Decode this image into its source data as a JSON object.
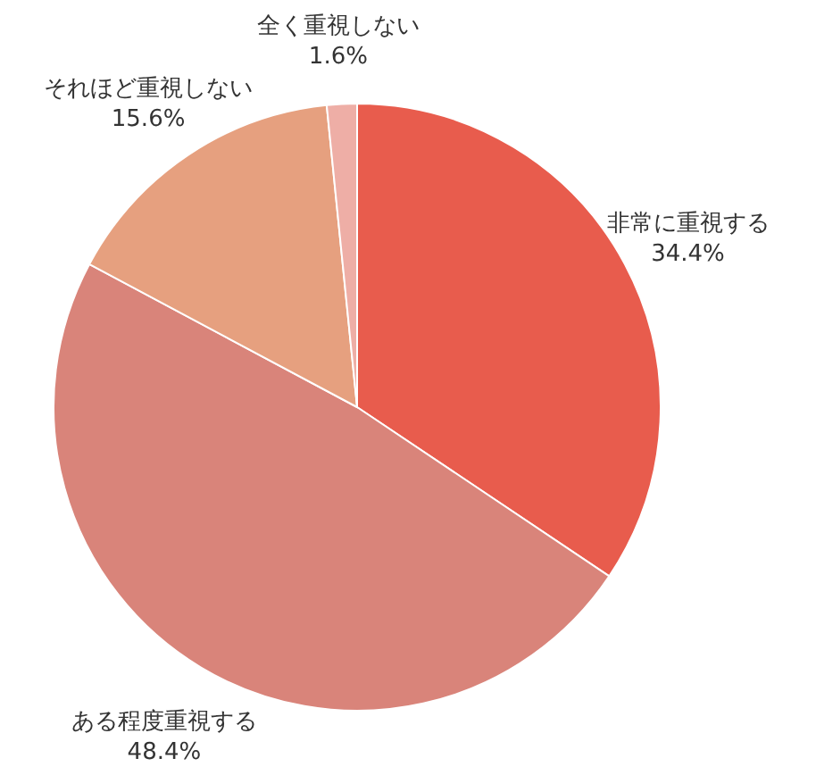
{
  "chart_data": {
    "type": "pie",
    "categories": [
      "非常に重視する",
      "ある程度重視する",
      "それほど重視しない",
      "全く重視しない"
    ],
    "values": [
      34.4,
      48.4,
      15.6,
      1.6
    ],
    "value_labels": [
      "34.4%",
      "48.4%",
      "15.6%",
      "1.6%"
    ],
    "colors": [
      "#e85c4d",
      "#d9847a",
      "#e6a07f",
      "#eeaea6"
    ]
  }
}
